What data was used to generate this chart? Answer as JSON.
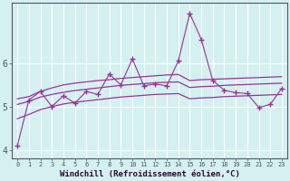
{
  "xlabel": "Windchill (Refroidissement éolien,°C)",
  "background_color": "#d4f0f0",
  "grid_color": "#ffffff",
  "line_color": "#993399",
  "xlim": [
    -0.5,
    23.5
  ],
  "ylim": [
    3.8,
    7.4
  ],
  "yticks": [
    4,
    5,
    6
  ],
  "xticks": [
    0,
    1,
    2,
    3,
    4,
    5,
    6,
    7,
    8,
    9,
    10,
    11,
    12,
    13,
    14,
    15,
    16,
    17,
    18,
    19,
    20,
    21,
    22,
    23
  ],
  "x_data": [
    0,
    1,
    2,
    3,
    4,
    5,
    6,
    7,
    8,
    9,
    10,
    11,
    12,
    13,
    14,
    15,
    16,
    17,
    18,
    19,
    20,
    21,
    22,
    23
  ],
  "y_zigzag": [
    4.1,
    5.15,
    5.35,
    5.0,
    5.25,
    5.08,
    5.35,
    5.28,
    5.75,
    5.5,
    6.1,
    5.48,
    5.52,
    5.48,
    6.05,
    7.15,
    6.55,
    5.6,
    5.38,
    5.32,
    5.3,
    4.98,
    5.05,
    5.42
  ],
  "y_upper": [
    5.18,
    5.23,
    5.35,
    5.43,
    5.5,
    5.54,
    5.57,
    5.6,
    5.62,
    5.65,
    5.67,
    5.69,
    5.71,
    5.73,
    5.74,
    5.6,
    5.62,
    5.63,
    5.64,
    5.65,
    5.66,
    5.67,
    5.68,
    5.69
  ],
  "y_mid": [
    5.05,
    5.12,
    5.22,
    5.28,
    5.33,
    5.37,
    5.4,
    5.43,
    5.46,
    5.49,
    5.51,
    5.53,
    5.55,
    5.56,
    5.57,
    5.44,
    5.46,
    5.47,
    5.49,
    5.5,
    5.51,
    5.52,
    5.53,
    5.54
  ],
  "y_lower": [
    4.72,
    4.82,
    4.93,
    5.0,
    5.06,
    5.1,
    5.13,
    5.16,
    5.19,
    5.22,
    5.24,
    5.26,
    5.28,
    5.29,
    5.3,
    5.18,
    5.2,
    5.21,
    5.23,
    5.24,
    5.25,
    5.26,
    5.27,
    5.28
  ]
}
